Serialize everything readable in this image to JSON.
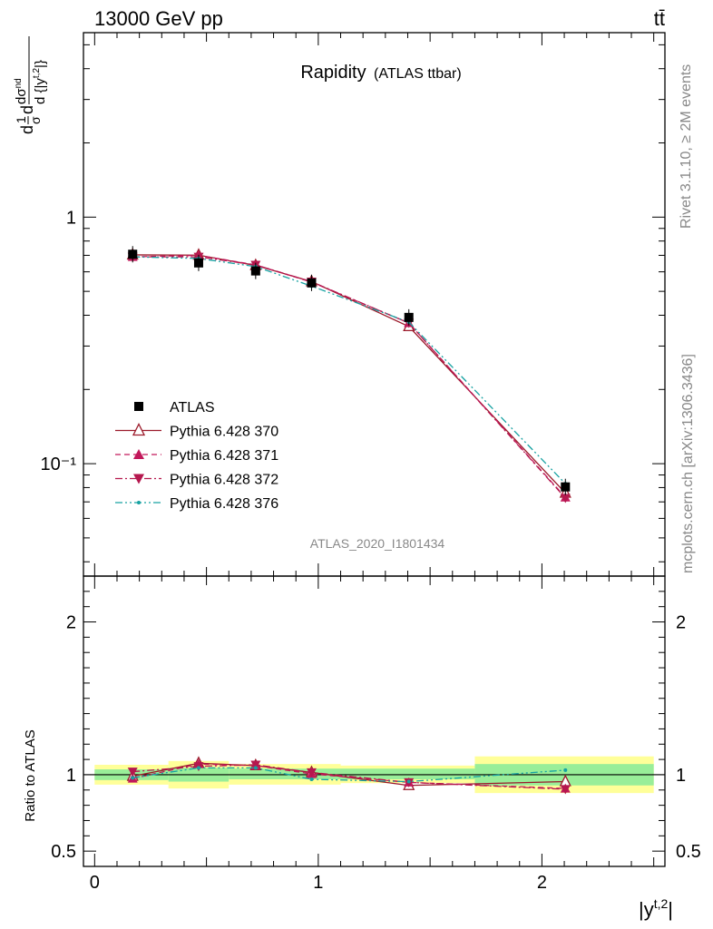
{
  "header": {
    "energy_label": "13000 GeV pp",
    "process_label": "tt̄"
  },
  "side_texts": {
    "rivet": "Rivet 3.1.10, ≥ 2M events",
    "source": "mcplots.cern.ch [arXiv:1306.3436]"
  },
  "chart_data": [
    {
      "type": "line",
      "panel": "main",
      "title": "Rapidity",
      "subtitle": "(ATLAS ttbar)",
      "analysis_label": "ATLAS_2020_I1801434",
      "ylabel": "dσ/d|yᵗ·²| (1/σ)",
      "yscale": "log",
      "ylim": [
        0.035,
        5.6
      ],
      "xlim": [
        -0.05,
        2.55
      ],
      "yticks": [
        {
          "value": 1,
          "label": "1"
        },
        {
          "value": 0.1,
          "label": "10⁻¹"
        }
      ],
      "legend_position": "middle-left",
      "series": [
        {
          "name": "ATLAS",
          "color": "#000000",
          "marker": "square",
          "x": [
            0.17,
            0.465,
            0.72,
            0.97,
            1.405,
            2.105
          ],
          "y": [
            0.707,
            0.652,
            0.605,
            0.541,
            0.392,
            0.0805
          ]
        },
        {
          "name": "Pythia 6.428 370",
          "color": "#9b1a2a",
          "marker": "open-triangle-up",
          "dash": "solid",
          "x": [
            0.17,
            0.465,
            0.72,
            0.97,
            1.405,
            2.105
          ],
          "y": [
            0.703,
            0.701,
            0.637,
            0.548,
            0.36,
            0.076
          ]
        },
        {
          "name": "Pythia 6.428 371",
          "color": "#c2185b",
          "marker": "triangle-up",
          "dash": "dashed",
          "x": [
            0.17,
            0.465,
            0.72,
            0.97,
            1.405,
            2.105
          ],
          "y": [
            0.69,
            0.7,
            0.64,
            0.545,
            0.372,
            0.073
          ]
        },
        {
          "name": "Pythia 6.428 372",
          "color": "#b5174e",
          "marker": "triangle-down",
          "dash": "dashdot",
          "x": [
            0.17,
            0.465,
            0.72,
            0.97,
            1.405,
            2.105
          ],
          "y": [
            0.69,
            0.69,
            0.64,
            0.547,
            0.372,
            0.0725
          ]
        },
        {
          "name": "Pythia 6.428 376",
          "color": "#17a2a2",
          "marker": "dot",
          "dash": "dashdotdot",
          "x": [
            0.17,
            0.465,
            0.72,
            0.97,
            1.405,
            2.105
          ],
          "y": [
            0.69,
            0.68,
            0.63,
            0.525,
            0.375,
            0.083
          ]
        }
      ]
    },
    {
      "type": "line",
      "panel": "ratio",
      "ylabel": "Ratio to ATLAS",
      "xlabel": "|yᵗ·²|",
      "xlim": [
        -0.05,
        2.55
      ],
      "ylim": [
        0.4,
        2.3
      ],
      "xticks": [
        {
          "value": 0,
          "label": "0"
        },
        {
          "value": 1,
          "label": "1"
        },
        {
          "value": 2,
          "label": "2"
        }
      ],
      "yticks": [
        {
          "value": 0.5,
          "label": "0.5"
        },
        {
          "value": 1,
          "label": "1"
        },
        {
          "value": 2,
          "label": "2"
        }
      ],
      "uncertainty_bands": {
        "bins": [
          [
            0,
            0.33
          ],
          [
            0.33,
            0.6
          ],
          [
            0.6,
            1.1
          ],
          [
            1.1,
            1.7
          ],
          [
            1.7,
            2.5
          ]
        ],
        "stat_syst": [
          [
            0.935,
            1.065
          ],
          [
            0.91,
            1.09
          ],
          [
            0.935,
            1.07
          ],
          [
            0.945,
            1.06
          ],
          [
            0.88,
            1.12
          ]
        ],
        "stat": [
          [
            0.965,
            1.035
          ],
          [
            0.955,
            1.045
          ],
          [
            0.97,
            1.04
          ],
          [
            0.97,
            1.04
          ],
          [
            0.93,
            1.07
          ]
        ],
        "colors": {
          "stat_syst": "#ffff99",
          "stat": "#99ee99"
        }
      },
      "series": [
        {
          "name": "Pythia 6.428 370",
          "color": "#9b1a2a",
          "marker": "open-triangle-up",
          "dash": "solid",
          "x": [
            0.17,
            0.465,
            0.72,
            0.97,
            1.405,
            2.105
          ],
          "y": [
            0.99,
            1.075,
            1.06,
            1.015,
            0.93,
            0.955
          ]
        },
        {
          "name": "Pythia 6.428 371",
          "color": "#c2185b",
          "marker": "triangle-up",
          "dash": "dashed",
          "x": [
            0.17,
            0.465,
            0.72,
            0.97,
            1.405,
            2.105
          ],
          "y": [
            0.975,
            1.07,
            1.06,
            1.005,
            0.95,
            0.91
          ]
        },
        {
          "name": "Pythia 6.428 372",
          "color": "#b5174e",
          "marker": "triangle-down",
          "dash": "dashdot",
          "x": [
            0.17,
            0.465,
            0.72,
            0.97,
            1.405,
            2.105
          ],
          "y": [
            1.02,
            1.055,
            1.065,
            1.015,
            0.95,
            0.905
          ]
        },
        {
          "name": "Pythia 6.428 376",
          "color": "#17a2a2",
          "marker": "dot",
          "dash": "dashdotdot",
          "x": [
            0.17,
            0.465,
            0.72,
            0.97,
            1.405,
            2.105
          ],
          "y": [
            0.98,
            1.045,
            1.045,
            0.97,
            0.955,
            1.03
          ]
        }
      ]
    }
  ]
}
